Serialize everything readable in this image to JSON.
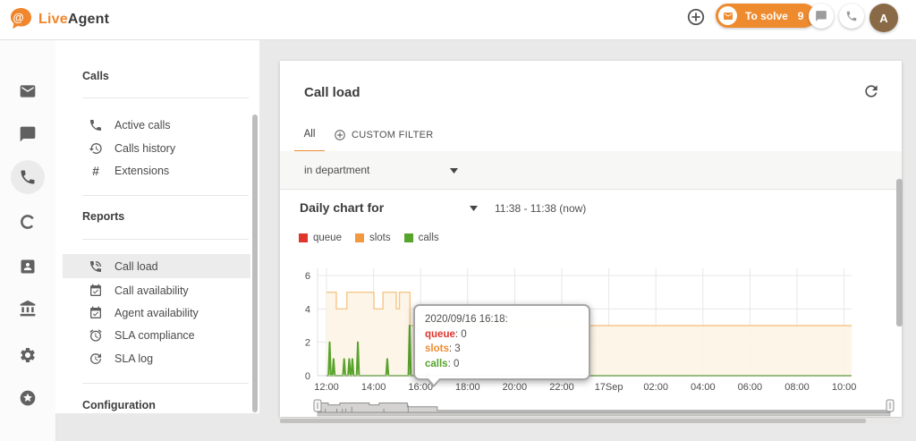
{
  "topbar": {
    "brand": {
      "live": "Live",
      "agent": "Agent"
    },
    "to_solve": {
      "label": "To solve",
      "count": "9"
    },
    "avatar_initial": "A"
  },
  "icons": {
    "hash": "#"
  },
  "sidebar": {
    "sections": [
      {
        "title": "Calls",
        "items": [
          {
            "icon": "phone-icon",
            "label": "Active calls"
          },
          {
            "icon": "history-icon",
            "label": "Calls history"
          },
          {
            "icon": "hash-icon",
            "label": "Extensions"
          }
        ]
      },
      {
        "title": "Reports",
        "items": [
          {
            "icon": "phone-in-talk-icon",
            "label": "Call load",
            "active": true
          },
          {
            "icon": "calendar-check-icon",
            "label": "Call availability"
          },
          {
            "icon": "calendar-check-icon",
            "label": "Agent availability"
          },
          {
            "icon": "alarm-icon",
            "label": "SLA compliance"
          },
          {
            "icon": "update-icon",
            "label": "SLA log"
          }
        ]
      },
      {
        "title": "Configuration",
        "items": []
      }
    ]
  },
  "main": {
    "title": "Call load",
    "tabs": [
      {
        "label": "All",
        "active": true
      },
      {
        "label": "CUSTOM FILTER",
        "active": false
      }
    ],
    "filter": {
      "label": "in department"
    },
    "chart_header": {
      "label": "Daily chart for",
      "range": "11:38 - 11:38 (now)"
    },
    "legend": [
      {
        "label": "queue",
        "color": "#df352c"
      },
      {
        "label": "slots",
        "color": "#f2993f"
      },
      {
        "label": "calls",
        "color": "#57a32c"
      }
    ],
    "tooltip": {
      "title": "2020/09/16 16:18:",
      "rows": [
        {
          "label": "queue",
          "value": "0",
          "color": "#df352c"
        },
        {
          "label": "slots",
          "value": "3",
          "color": "#ef8b2f"
        },
        {
          "label": "calls",
          "value": "0",
          "color": "#57a32c"
        }
      ]
    }
  },
  "chart_data": {
    "type": "line",
    "title": "Daily chart for",
    "subtitle_range": "11:38 - 11:38 (now)",
    "x_tick_labels": [
      "12:00",
      "14:00",
      "16:00",
      "18:00",
      "20:00",
      "22:00",
      "17Sep",
      "02:00",
      "04:00",
      "06:00",
      "08:00",
      "10:00"
    ],
    "x_tick_minutes": [
      0,
      120,
      240,
      360,
      480,
      600,
      720,
      840,
      960,
      1080,
      1200,
      1320
    ],
    "x_end_minute": 1339,
    "ylim": [
      0,
      6
    ],
    "y_ticks": [
      0,
      2,
      4,
      6
    ],
    "grid": true,
    "legend_position": "top-left",
    "series": [
      {
        "name": "queue",
        "type": "line",
        "color": "#df352c",
        "points": [
          [
            0,
            0
          ],
          [
            1339,
            0
          ]
        ]
      },
      {
        "name": "slots",
        "type": "step",
        "color": "#f5c78a",
        "fill": "#fdf4e4",
        "points": [
          [
            0,
            5
          ],
          [
            25,
            4
          ],
          [
            52,
            5
          ],
          [
            121,
            4
          ],
          [
            144,
            5
          ],
          [
            178,
            4
          ],
          [
            186,
            5
          ],
          [
            213,
            3
          ],
          [
            1339,
            3
          ]
        ]
      },
      {
        "name": "calls",
        "type": "spikes",
        "color": "#57a32c",
        "baseline": 0,
        "spikes": [
          [
            8,
            2
          ],
          [
            18,
            1
          ],
          [
            45,
            1
          ],
          [
            58,
            1
          ],
          [
            66,
            1
          ],
          [
            80,
            2
          ],
          [
            155,
            1
          ],
          [
            212,
            3
          ]
        ],
        "end_minute": 1339
      }
    ],
    "marker": {
      "series": "calls",
      "minute": 258,
      "value": 0
    },
    "navigator": {
      "profile": [
        [
          0,
          5
        ],
        [
          25,
          4
        ],
        [
          52,
          5
        ],
        [
          121,
          4
        ],
        [
          144,
          5
        ],
        [
          210,
          3
        ],
        [
          280,
          1
        ],
        [
          1339,
          1
        ]
      ]
    }
  }
}
